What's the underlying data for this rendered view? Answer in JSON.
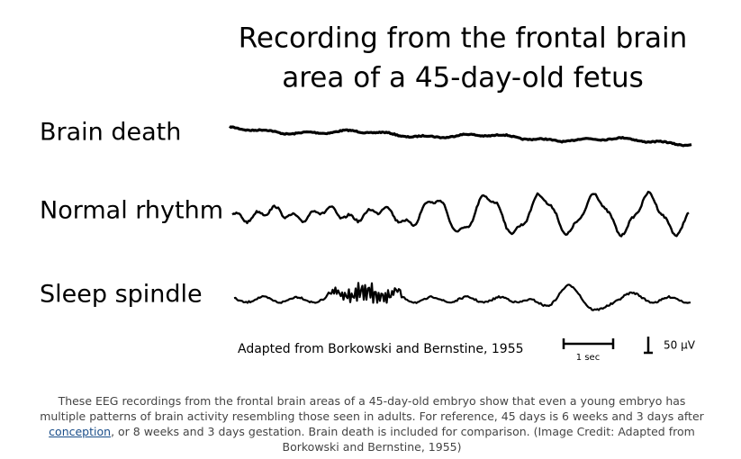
{
  "figure": {
    "title_lines": [
      "Recording from the frontal brain",
      "area of a 45-day-old fetus"
    ],
    "traces": [
      {
        "label": "Brain death"
      },
      {
        "label": "Normal rhythm"
      },
      {
        "label": "Sleep spindle"
      }
    ],
    "credit": "Adapted from Borkowski and Bernstine, 1955",
    "time_scale": "1 sec",
    "amplitude_scale": "50 µV"
  },
  "caption": {
    "before_link": "These EEG recordings from the frontal brain areas of a 45-day-old embryo show that even a young embryo has multiple patterns of brain activity resembling those seen in adults. For reference, 45 days is 6 weeks and 3 days after ",
    "link": "conception",
    "after_link": ", or 8 weeks and 3 days gestation. Brain death is included for comparison. (Image Credit: Adapted from Borkowski and Bernstine, 1955)"
  }
}
